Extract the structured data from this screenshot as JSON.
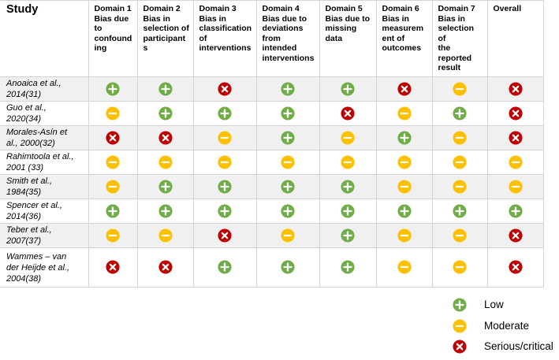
{
  "header": {
    "study": "Study",
    "domains": [
      [
        "Domain 1",
        "Bias due",
        "to",
        "confound",
        "ing"
      ],
      [
        "Domain 2",
        "Bias in",
        "selection of",
        "participant",
        "s"
      ],
      [
        "Domain 3",
        "Bias in",
        "classification",
        "of",
        "interventions"
      ],
      [
        "Domain 4",
        "Bias due to",
        "deviations",
        "from",
        "intended",
        "interventions"
      ],
      [
        "Domain 5",
        "Bias due to",
        "missing",
        "data"
      ],
      [
        "Domain 6",
        "Bias in",
        "measurem",
        "ent of",
        "outcomes"
      ],
      [
        "Domain 7",
        "Bias in",
        "selection of",
        "the",
        "reported",
        "result"
      ]
    ],
    "overall": "Overall"
  },
  "studies": [
    {
      "name_lines": [
        "Anoaica et al.,",
        "2014(31)"
      ],
      "ratings": [
        "low",
        "low",
        "serious",
        "low",
        "low",
        "serious",
        "moderate",
        "serious"
      ]
    },
    {
      "name_lines": [
        "Guo et al.,",
        "2020(34)"
      ],
      "ratings": [
        "moderate",
        "low",
        "low",
        "low",
        "serious",
        "moderate",
        "low",
        "serious"
      ]
    },
    {
      "name_lines": [
        "Morales-Asín et",
        "al., 2000(32)"
      ],
      "ratings": [
        "serious",
        "serious",
        "moderate",
        "low",
        "moderate",
        "low",
        "moderate",
        "serious"
      ]
    },
    {
      "name_lines": [
        "Rahimtoola et al.,",
        "2001 (33)"
      ],
      "ratings": [
        "moderate",
        "moderate",
        "moderate",
        "moderate",
        "moderate",
        "moderate",
        "moderate",
        "moderate"
      ]
    },
    {
      "name_lines": [
        "Smith et al.,",
        "1984(35)"
      ],
      "ratings": [
        "moderate",
        "low",
        "low",
        "low",
        "low",
        "moderate",
        "moderate",
        "moderate"
      ]
    },
    {
      "name_lines": [
        "Spencer et al.,",
        "2014(36)"
      ],
      "ratings": [
        "low",
        "low",
        "low",
        "low",
        "low",
        "low",
        "low",
        "low"
      ]
    },
    {
      "name_lines": [
        "Teber et al.,",
        "2007(37)"
      ],
      "ratings": [
        "moderate",
        "moderate",
        "serious",
        "moderate",
        "low",
        "moderate",
        "moderate",
        "serious"
      ]
    },
    {
      "name_lines": [
        "Wammes – van",
        "der Heijde et al.,",
        "2004(38)"
      ],
      "ratings": [
        "serious",
        "serious",
        "low",
        "low",
        "low",
        "moderate",
        "moderate",
        "serious"
      ]
    }
  ],
  "legend": [
    {
      "key": "low",
      "label": "Low",
      "icon": "plus-circle-icon"
    },
    {
      "key": "moderate",
      "label": "Moderate",
      "icon": "minus-circle-icon"
    },
    {
      "key": "serious",
      "label": "Serious/critical",
      "icon": "cross-circle-icon"
    }
  ],
  "colors": {
    "low": "#70ad47",
    "moderate": "#ffc000",
    "serious": "#c00000",
    "grid": "#d4d4d4",
    "row_shade": "#f0f0f0"
  }
}
